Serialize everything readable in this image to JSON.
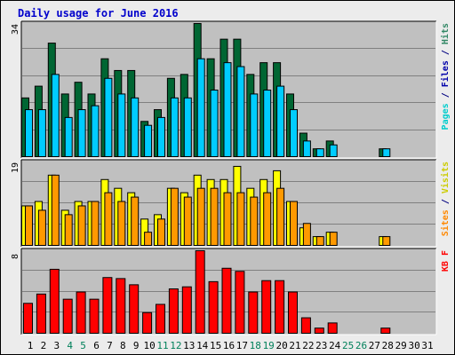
{
  "chart_data": [
    {
      "panel": "pages-files-hits",
      "type": "bar",
      "title": "Daily usage for June 2016",
      "categories": [
        "1",
        "2",
        "3",
        "4",
        "5",
        "6",
        "7",
        "8",
        "9",
        "10",
        "11",
        "12",
        "13",
        "14",
        "15",
        "16",
        "17",
        "18",
        "19",
        "20",
        "21",
        "22",
        "23",
        "24",
        "25",
        "26",
        "27",
        "28",
        "29",
        "30",
        "31"
      ],
      "ymax_label": "34",
      "ylim": [
        0,
        34
      ],
      "grid": true,
      "series": [
        {
          "name": "Hits",
          "color": "#006633",
          "values": [
            15,
            18,
            29,
            16,
            19,
            16,
            25,
            22,
            22,
            9,
            12,
            20,
            21,
            34,
            25,
            30,
            30,
            21,
            24,
            24,
            16,
            6,
            2,
            4,
            0,
            0,
            0,
            2,
            0,
            0,
            0
          ]
        },
        {
          "name": "Files",
          "color": "#00ccff",
          "values": [
            12,
            12,
            21,
            10,
            12,
            13,
            20,
            16,
            15,
            8,
            10,
            15,
            15,
            25,
            17,
            24,
            23,
            16,
            17,
            18,
            12,
            4,
            2,
            3,
            0,
            0,
            0,
            2,
            0,
            0,
            0
          ]
        },
        {
          "name": "Pages",
          "color": "#00ccff",
          "values": [
            12,
            12,
            21,
            10,
            12,
            13,
            20,
            16,
            15,
            8,
            10,
            15,
            15,
            25,
            17,
            24,
            23,
            16,
            17,
            18,
            12,
            4,
            2,
            3,
            0,
            0,
            0,
            2,
            0,
            0,
            0
          ]
        }
      ],
      "y_legend": [
        {
          "text": "Pages",
          "color": "#00cccc"
        },
        {
          "text": " / ",
          "color": "#000080"
        },
        {
          "text": "Files",
          "color": "#0000aa"
        },
        {
          "text": " / ",
          "color": "#000080"
        },
        {
          "text": "Hits",
          "color": "#338866"
        }
      ]
    },
    {
      "panel": "sites-visits",
      "type": "bar",
      "categories": [
        "1",
        "2",
        "3",
        "4",
        "5",
        "6",
        "7",
        "8",
        "9",
        "10",
        "11",
        "12",
        "13",
        "14",
        "15",
        "16",
        "17",
        "18",
        "19",
        "20",
        "21",
        "22",
        "23",
        "24",
        "25",
        "26",
        "27",
        "28",
        "29",
        "30",
        "31"
      ],
      "ymax_label": "19",
      "ylim": [
        0,
        19
      ],
      "grid": true,
      "series": [
        {
          "name": "Visits",
          "color": "#ffff00",
          "values": [
            9,
            10,
            16,
            8,
            10,
            10,
            15,
            13,
            12,
            6,
            7,
            13,
            12,
            16,
            15,
            15,
            18,
            13,
            15,
            17,
            10,
            4,
            2,
            3,
            0,
            0,
            0,
            2,
            0,
            0,
            0
          ]
        },
        {
          "name": "Sites",
          "color": "#ff9900",
          "values": [
            9,
            8,
            16,
            7,
            9,
            10,
            12,
            10,
            11,
            3,
            6,
            13,
            11,
            13,
            13,
            12,
            12,
            11,
            12,
            13,
            10,
            5,
            2,
            3,
            0,
            0,
            0,
            2,
            0,
            0,
            0
          ]
        }
      ],
      "y_legend": [
        {
          "text": "Sites",
          "color": "#ff8800"
        },
        {
          "text": " / ",
          "color": "#000080"
        },
        {
          "text": "Visits",
          "color": "#cccc00"
        }
      ]
    },
    {
      "panel": "kbytes",
      "type": "bar",
      "categories": [
        "1",
        "2",
        "3",
        "4",
        "5",
        "6",
        "7",
        "8",
        "9",
        "10",
        "11",
        "12",
        "13",
        "14",
        "15",
        "16",
        "17",
        "18",
        "19",
        "20",
        "21",
        "22",
        "23",
        "24",
        "25",
        "26",
        "27",
        "28",
        "29",
        "30",
        "31"
      ],
      "ymax_label": "8",
      "ylim": [
        0,
        8
      ],
      "grid": true,
      "series": [
        {
          "name": "KB F",
          "color": "#ff0000",
          "values": [
            2.9,
            3.8,
            6.2,
            3.3,
            4.0,
            3.3,
            5.4,
            5.3,
            4.7,
            2.0,
            2.8,
            4.3,
            4.5,
            8.0,
            5.0,
            6.3,
            6.0,
            4.0,
            5.1,
            5.1,
            4.0,
            1.5,
            0.5,
            1.0,
            0,
            0,
            0,
            0.5,
            0,
            0,
            0
          ]
        }
      ],
      "y_legend": [
        {
          "text": "KB F",
          "color": "#ff0000"
        }
      ]
    }
  ],
  "weekend_days": [
    4,
    5,
    11,
    12,
    18,
    19,
    25,
    26
  ],
  "colors": {
    "day_label": "#000000",
    "weekend_label": "#00805a",
    "title": "#0000cc",
    "panel_bg": "#c0c0c0",
    "frame": "#ececec"
  }
}
